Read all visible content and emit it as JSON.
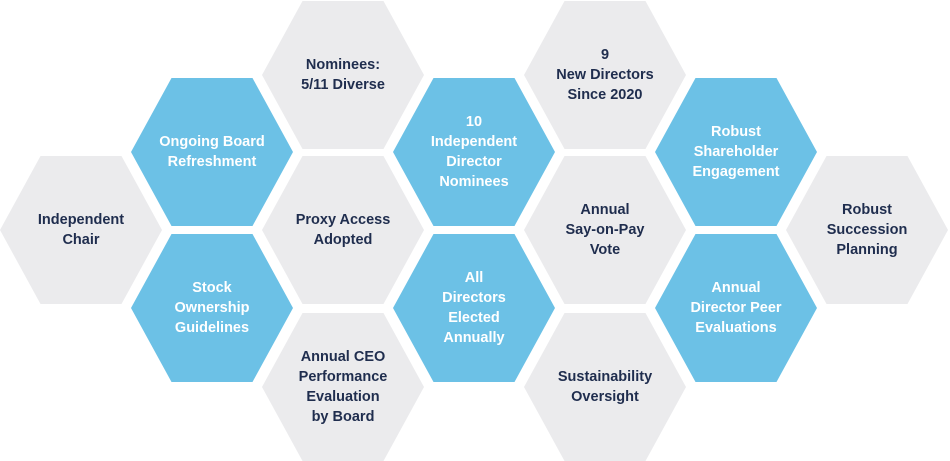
{
  "colors": {
    "gray": "#ebebed",
    "blue": "#6cc1e6",
    "dark_text": "#1f2d4e",
    "light_text": "#ffffff"
  },
  "hexagons": [
    {
      "label": "Independent\nChair",
      "style": "gray",
      "col": 0,
      "row": 2
    },
    {
      "label": "Ongoing Board\nRefreshment",
      "style": "blue",
      "col": 1,
      "row": 1
    },
    {
      "label": "Stock Ownership\nGuidelines",
      "style": "blue",
      "col": 1,
      "row": 3
    },
    {
      "label": "Nominees:\n5/11 Diverse",
      "style": "gray",
      "col": 2,
      "row": 0
    },
    {
      "label": "Proxy Access\nAdopted",
      "style": "gray",
      "col": 2,
      "row": 2
    },
    {
      "label": "Annual CEO\nPerformance\nEvaluation\nby Board",
      "style": "gray",
      "col": 2,
      "row": 4
    },
    {
      "label": "10\nIndependent\nDirector\nNominees",
      "style": "blue",
      "col": 3,
      "row": 1
    },
    {
      "label": "All\nDirectors\nElected\nAnnually",
      "style": "blue",
      "col": 3,
      "row": 3
    },
    {
      "label": "9\nNew Directors\nSince 2020",
      "style": "gray",
      "col": 4,
      "row": 0
    },
    {
      "label": "Annual\nSay-on-Pay\nVote",
      "style": "gray",
      "col": 4,
      "row": 2
    },
    {
      "label": "Sustainability\nOversight",
      "style": "gray",
      "col": 4,
      "row": 4
    },
    {
      "label": "Robust\nShareholder\nEngagement",
      "style": "blue",
      "col": 5,
      "row": 1
    },
    {
      "label": "Annual\nDirector Peer\nEvaluations",
      "style": "blue",
      "col": 5,
      "row": 3
    },
    {
      "label": "Robust\nSuccession\nPlanning",
      "style": "gray",
      "col": 6,
      "row": 2
    }
  ]
}
